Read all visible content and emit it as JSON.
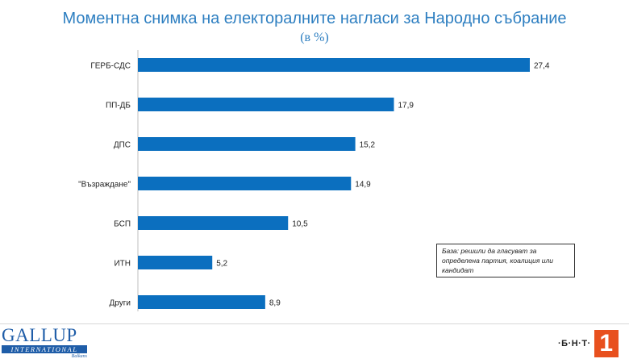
{
  "chart_data": {
    "type": "bar",
    "orientation": "horizontal",
    "title": "Моментна снимка на електоралните нагласи за Народно събрание",
    "subtitle": "(в %)",
    "categories": [
      "ГЕРБ-СДС",
      "ПП-ДБ",
      "ДПС",
      "\"Възраждане\"",
      "БСП",
      "ИТН",
      "Други"
    ],
    "values": [
      27.4,
      17.9,
      15.2,
      14.9,
      10.5,
      5.2,
      8.9
    ],
    "value_labels": [
      "27,4",
      "17,9",
      "15,2",
      "14,9",
      "10,5",
      "5,2",
      "8,9"
    ],
    "xlim": [
      0,
      27.4
    ],
    "grid": false,
    "legend": "none",
    "bar_color": "#0b6fbf"
  },
  "note": {
    "text": "База: решили да гласуват за определена партия, коалиция или кандидат"
  },
  "logos": {
    "gallup_name": "GALLUP",
    "gallup_international": "INTERNATIONAL",
    "gallup_region": "Balkans",
    "broadcaster_text": "·Б·Н·Т·",
    "broadcaster_number": "1"
  }
}
